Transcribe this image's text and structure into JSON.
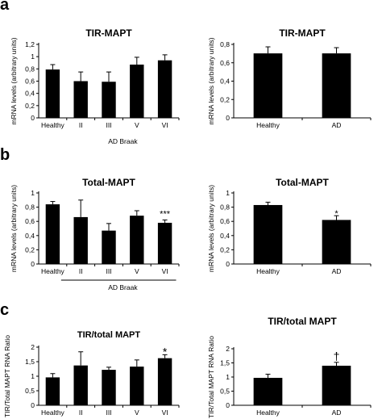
{
  "panel_labels": [
    "a",
    "b",
    "c"
  ],
  "chart_data": [
    {
      "id": "a-left",
      "panel": "a",
      "type": "bar",
      "title": "TIR-MAPT",
      "ylabel": "mRNA levels (arbitrary units)",
      "categories": [
        "Healthy",
        "II",
        "III",
        "V",
        "VI"
      ],
      "values": [
        0.79,
        0.6,
        0.59,
        0.87,
        0.94
      ],
      "errors": [
        0.08,
        0.15,
        0.16,
        0.12,
        0.09
      ],
      "ylim": [
        0,
        1.2
      ],
      "yticks": [
        "0",
        "0,2",
        "0,4",
        "0,6",
        "0,8",
        "1",
        "1,2"
      ],
      "group_label": "AD Braak",
      "group_line": false,
      "annotations": [
        "",
        "",
        "",
        "",
        ""
      ]
    },
    {
      "id": "a-right",
      "panel": "a",
      "type": "bar",
      "title": "TIR-MAPT",
      "ylabel": "mRNA levels (arbitrary units)",
      "categories": [
        "Healthy",
        "AD"
      ],
      "values": [
        0.79,
        0.79
      ],
      "errors": [
        0.08,
        0.07
      ],
      "ylim": [
        0,
        0.9
      ],
      "yticks": [
        "0",
        "0,2",
        "0,4",
        "0,6",
        "0,8"
      ],
      "group_label": "",
      "annotations": [
        "",
        ""
      ]
    },
    {
      "id": "b-left",
      "panel": "b",
      "type": "bar",
      "title": "Total-MAPT",
      "ylabel": "mRNA levels (arbitrary units)",
      "categories": [
        "Healthy",
        "II",
        "III",
        "V",
        "VI"
      ],
      "values": [
        0.84,
        0.66,
        0.47,
        0.68,
        0.58
      ],
      "errors": [
        0.04,
        0.24,
        0.1,
        0.07,
        0.04
      ],
      "ylim": [
        0,
        1.0
      ],
      "yticks": [
        "0",
        "0,2",
        "0,4",
        "0,6",
        "0,8",
        "1"
      ],
      "group_label": "AD Braak",
      "group_line": true,
      "annotations": [
        "",
        "",
        "",
        "",
        "***"
      ]
    },
    {
      "id": "b-right",
      "panel": "b",
      "type": "bar",
      "title": "Total-MAPT",
      "ylabel": "mRNA levels (arbitrary units)",
      "categories": [
        "Healthy",
        "AD"
      ],
      "values": [
        0.83,
        0.62
      ],
      "errors": [
        0.04,
        0.06
      ],
      "ylim": [
        0,
        1.0
      ],
      "yticks": [
        "0",
        "0,2",
        "0,4",
        "0,6",
        "0,8",
        "1"
      ],
      "group_label": "",
      "annotations": [
        "",
        "*"
      ]
    },
    {
      "id": "c-left",
      "panel": "c",
      "type": "bar",
      "title": "TIR/total MAPT",
      "ylabel": "TIR/Total MAPT RNA Ratio",
      "categories": [
        "Healthy",
        "II",
        "III",
        "V",
        "VI"
      ],
      "values": [
        0.96,
        1.37,
        1.22,
        1.33,
        1.62
      ],
      "errors": [
        0.13,
        0.47,
        0.09,
        0.23,
        0.12
      ],
      "ylim": [
        0,
        2.0
      ],
      "yticks": [
        "0",
        "0,5",
        "1",
        "1,5",
        "2"
      ],
      "group_label": "",
      "annotations": [
        "",
        "",
        "",
        "",
        "*"
      ]
    },
    {
      "id": "c-right",
      "panel": "c",
      "type": "bar",
      "title": "TIR/total MAPT",
      "ylabel": "TIR/Total MAPT RNA Ratio",
      "categories": [
        "Healthy",
        "AD"
      ],
      "values": [
        0.97,
        1.4
      ],
      "errors": [
        0.13,
        0.12
      ],
      "ylim": [
        0,
        2.0
      ],
      "yticks": [
        "0",
        "0,5",
        "1",
        "1,5",
        "2"
      ],
      "group_label": "",
      "annotations": [
        "",
        "†"
      ]
    }
  ]
}
